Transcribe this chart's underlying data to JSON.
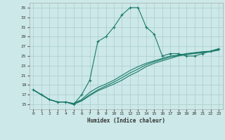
{
  "xlabel": "Humidex (Indice chaleur)",
  "bg_color": "#cce8e8",
  "grid_color": "#aacccc",
  "line_color": "#1a7a6a",
  "xlim": [
    -0.5,
    23.5
  ],
  "ylim": [
    14,
    36
  ],
  "yticks": [
    15,
    17,
    19,
    21,
    23,
    25,
    27,
    29,
    31,
    33,
    35
  ],
  "xticks": [
    0,
    1,
    2,
    3,
    4,
    5,
    6,
    7,
    8,
    9,
    10,
    11,
    12,
    13,
    14,
    15,
    16,
    17,
    18,
    19,
    20,
    21,
    22,
    23
  ],
  "line1_x": [
    0,
    1,
    2,
    3,
    4,
    5,
    6,
    7,
    8,
    9,
    10,
    11,
    12,
    13,
    14,
    15,
    16,
    17,
    18,
    19,
    20,
    21,
    22,
    23
  ],
  "line1_y": [
    18.0,
    17.0,
    16.0,
    15.5,
    15.5,
    15.0,
    17.0,
    20.0,
    28.0,
    29.0,
    31.0,
    33.5,
    35.0,
    35.0,
    31.0,
    29.5,
    25.0,
    25.5,
    25.5,
    25.0,
    25.0,
    25.5,
    26.0,
    26.5
  ],
  "line2_x": [
    0,
    1,
    2,
    3,
    4,
    5,
    6,
    7,
    8,
    9,
    10,
    11,
    12,
    13,
    14,
    15,
    16,
    17,
    18,
    19,
    20,
    21,
    22,
    23
  ],
  "line2_y": [
    18.0,
    17.0,
    16.0,
    15.5,
    15.5,
    15.2,
    16.0,
    17.5,
    18.5,
    19.2,
    20.0,
    21.0,
    22.0,
    22.8,
    23.5,
    24.0,
    24.5,
    25.0,
    25.2,
    25.5,
    25.7,
    25.9,
    26.0,
    26.5
  ],
  "line3_x": [
    0,
    1,
    2,
    3,
    4,
    5,
    6,
    7,
    8,
    9,
    10,
    11,
    12,
    13,
    14,
    15,
    16,
    17,
    18,
    19,
    20,
    21,
    22,
    23
  ],
  "line3_y": [
    18.0,
    17.0,
    16.0,
    15.5,
    15.5,
    15.1,
    15.8,
    17.0,
    18.0,
    18.8,
    19.6,
    20.5,
    21.5,
    22.3,
    23.2,
    23.8,
    24.3,
    24.8,
    25.1,
    25.4,
    25.6,
    25.8,
    25.9,
    26.3
  ],
  "line4_x": [
    0,
    1,
    2,
    3,
    4,
    5,
    6,
    7,
    8,
    9,
    10,
    11,
    12,
    13,
    14,
    15,
    16,
    17,
    18,
    19,
    20,
    21,
    22,
    23
  ],
  "line4_y": [
    18.0,
    17.0,
    16.0,
    15.5,
    15.5,
    15.0,
    15.7,
    16.8,
    17.8,
    18.5,
    19.2,
    20.0,
    21.0,
    21.8,
    22.8,
    23.5,
    24.0,
    24.5,
    25.0,
    25.3,
    25.5,
    25.7,
    25.9,
    26.2
  ]
}
